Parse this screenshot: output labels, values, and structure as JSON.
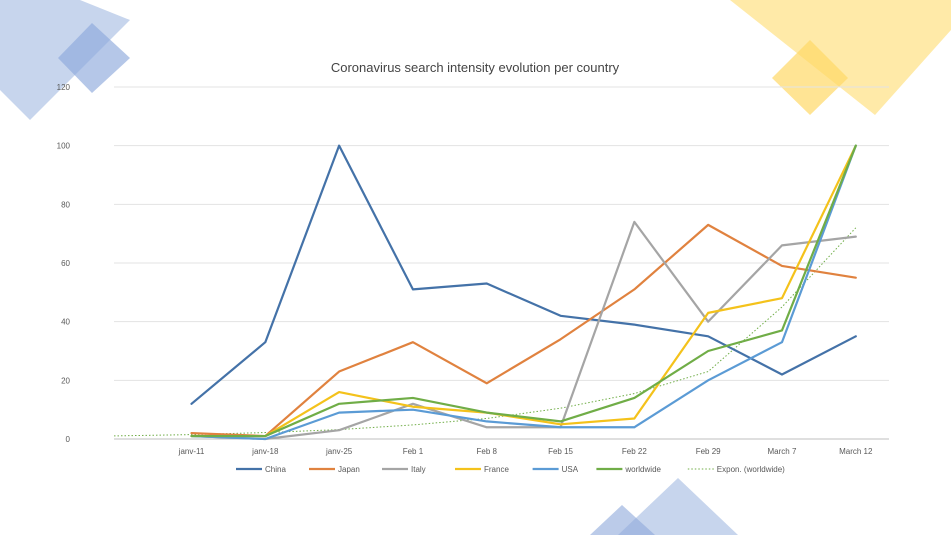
{
  "chart_data": {
    "type": "line",
    "title": "Coronavirus search intensity evolution per  country",
    "xlabel": "",
    "ylabel": "",
    "categories": [
      "janv-11",
      "janv-18",
      "janv-25",
      "Feb 1",
      "Feb 8",
      "Feb 15",
      "Feb 22",
      "Feb 29",
      "March 7",
      "March 12"
    ],
    "ylim": [
      0,
      120
    ],
    "yticks": [
      0,
      20,
      40,
      60,
      80,
      100,
      120
    ],
    "grid": true,
    "legend_position": "bottom",
    "series": [
      {
        "name": "China",
        "color": "#4472A8",
        "values": [
          12,
          33,
          100,
          51,
          53,
          42,
          39,
          35,
          22,
          35
        ]
      },
      {
        "name": "Japan",
        "color": "#E0823F",
        "values": [
          2,
          1,
          23,
          33,
          19,
          34,
          51,
          73,
          59,
          55
        ]
      },
      {
        "name": "Italy",
        "color": "#A5A5A5",
        "values": [
          1,
          0,
          3,
          12,
          4,
          4,
          74,
          40,
          66,
          69
        ]
      },
      {
        "name": "France",
        "color": "#F4C21B",
        "values": [
          1,
          1,
          16,
          11,
          9,
          5,
          7,
          43,
          48,
          100
        ]
      },
      {
        "name": "USA",
        "color": "#5B9BD5",
        "values": [
          1,
          0,
          9,
          10,
          6,
          4,
          4,
          20,
          33,
          100
        ]
      },
      {
        "name": "worldwide",
        "color": "#70AD47",
        "values": [
          1,
          1,
          12,
          14,
          9,
          6,
          14,
          30,
          37,
          100
        ]
      }
    ],
    "trendline": {
      "name": "Expon. (worldwide)",
      "color": "#70AD47",
      "extends_before_first_category": true,
      "values": [
        1.5,
        2.2,
        3.2,
        4.8,
        7,
        10.5,
        15.5,
        23,
        45,
        72
      ]
    }
  }
}
